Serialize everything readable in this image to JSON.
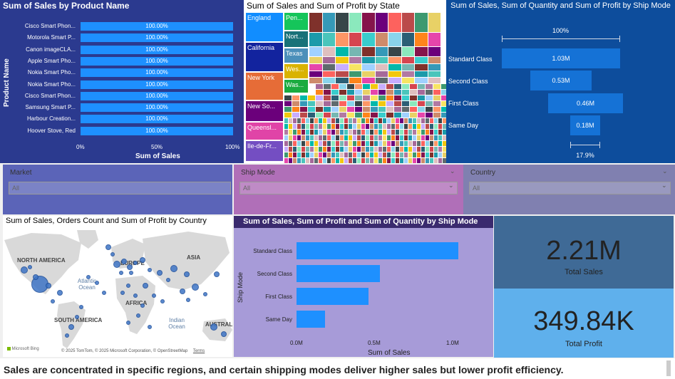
{
  "product_chart": {
    "title": "Sum of Sales by Product Name",
    "ylabel": "Product Name",
    "xlabel": "Sum of Sales",
    "xticks": [
      "0%",
      "50%",
      "100%"
    ],
    "rows": [
      {
        "label": "Cisco Smart Phon...",
        "value": "100.00%"
      },
      {
        "label": "Motorola Smart P...",
        "value": "100.00%"
      },
      {
        "label": "Canon imageCLA...",
        "value": "100.00%"
      },
      {
        "label": "Apple Smart Pho...",
        "value": "100.00%"
      },
      {
        "label": "Nokia Smart Pho...",
        "value": "100.00%"
      },
      {
        "label": "Nokia Smart Pho...",
        "value": "100.00%"
      },
      {
        "label": "Cisco Smart Phon...",
        "value": "100.00%"
      },
      {
        "label": "Samsung Smart P...",
        "value": "100.00%"
      },
      {
        "label": "Harbour Creation...",
        "value": "100.00%"
      },
      {
        "label": "Hoover Stove, Red",
        "value": "100.00%"
      }
    ]
  },
  "treemap": {
    "title": "Sum of Sales and Sum of Profit by State",
    "labels": [
      "England",
      "California",
      "New York",
      "New So...",
      "Queensl...",
      "Ile-de-Fr...",
      "Pen...",
      "Nort...",
      "Texas",
      "Wes...",
      "Was..."
    ],
    "colors": {
      "england": "#118dff",
      "california": "#12239e",
      "new_york": "#e66c37",
      "new_south": "#6b007b",
      "queensland": "#e044a7",
      "ile_de_france": "#744ec2",
      "pen": "#15c55a",
      "nort": "#197278",
      "texas": "#4b8fba",
      "wes": "#d9b300",
      "was": "#1aab40"
    }
  },
  "funnel": {
    "title": "Sum of Sales, Sum of Quantity and Sum of Profit by Ship Mode",
    "top_pct": "100%",
    "bottom_pct": "17.9%",
    "stages": [
      {
        "label": "Standard Class",
        "value": "1.03M"
      },
      {
        "label": "Second Class",
        "value": "0.53M"
      },
      {
        "label": "First Class",
        "value": "0.46M"
      },
      {
        "label": "Same Day",
        "value": "0.18M"
      }
    ]
  },
  "slicers": {
    "market": {
      "title": "Market",
      "value": "All"
    },
    "ship_mode": {
      "title": "Ship Mode",
      "value": "All"
    },
    "country": {
      "title": "Country",
      "value": "All"
    }
  },
  "map": {
    "title": "Sum of Sales, Orders Count and Sum of Profit by Country",
    "continents": [
      "NORTH AMERICA",
      "EUROPE",
      "ASIA",
      "AFRICA",
      "SOUTH AMERICA",
      "AUSTRAL"
    ],
    "oceans": [
      "Atlantic Ocean",
      "Indian Ocean"
    ],
    "brand": "Microsoft Bing",
    "copyright": "© 2025 TomTom, © 2025 Microsoft Corporation, © OpenStreetMap",
    "terms": "Terms"
  },
  "ship_chart": {
    "title": "Sum of Sales, Sum of Profit and Sum of Quantity by Ship Mode",
    "ylabel": "Ship Mode",
    "xlabel": "Sum of Sales",
    "xticks": [
      "0.0M",
      "0.5M",
      "1.0M"
    ],
    "xmax": 1.0,
    "rows": [
      {
        "label": "Standard Class",
        "value": 1.03
      },
      {
        "label": "Second Class",
        "value": 0.53
      },
      {
        "label": "First Class",
        "value": 0.46
      },
      {
        "label": "Same Day",
        "value": 0.18
      }
    ]
  },
  "kpis": {
    "sales": {
      "value": "2.21M",
      "label": "Total Sales"
    },
    "profit": {
      "value": "349.84K",
      "label": "Total Profit"
    }
  },
  "footer": "Sales are concentrated in specific regions, and certain shipping modes deliver higher sales but lower profit efficiency."
}
